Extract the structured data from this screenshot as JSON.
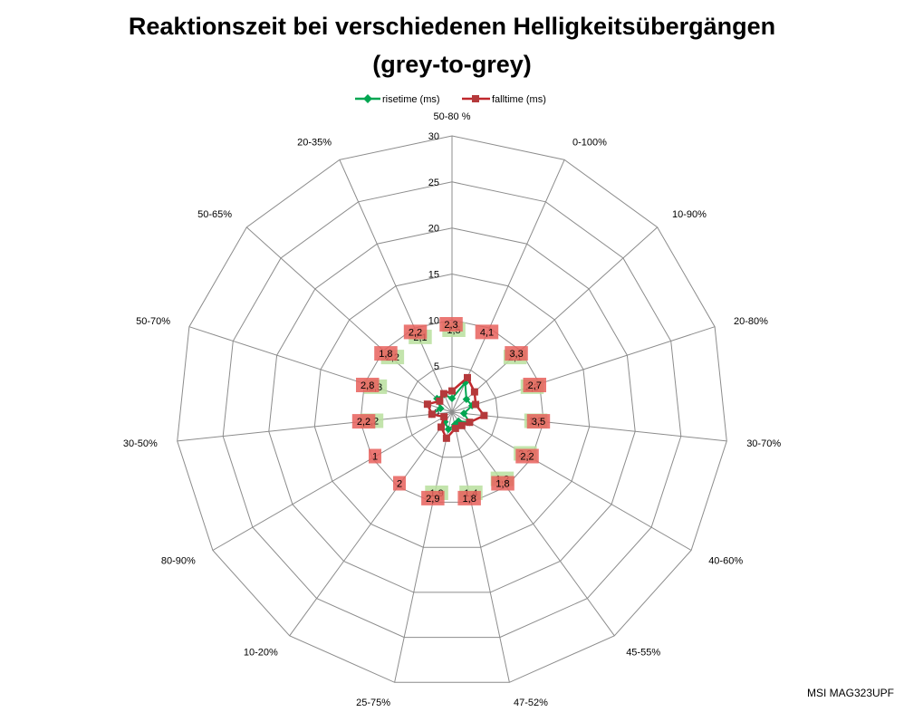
{
  "chart_data": {
    "type": "radar",
    "title_line1": "Reaktionszeit bei verschiedenen Helligkeitsübergängen",
    "title_line2": "(grey-to-grey)",
    "categories": [
      "50-80 %",
      "0-100%",
      "10-90%",
      "20-80%",
      "30-70%",
      "40-60%",
      "45-55%",
      "47-52%",
      "25-75%",
      "10-20%",
      "80-90%",
      "30-50%",
      "50-70%",
      "50-65%",
      "20-35%"
    ],
    "rmax": 30,
    "ticks": [
      0,
      5,
      10,
      15,
      20,
      25,
      30
    ],
    "series": [
      {
        "name": "risetime (ms)",
        "color": "#00a651",
        "values": [
          1.5,
          3.5,
          2.1,
          2.3,
          1.3,
          2.2,
          1.2,
          1.4,
          1.9,
          1.3,
          1.0,
          2.2,
          1.3,
          2.2,
          2.1
        ],
        "labels": [
          "1,5",
          "",
          "2,1",
          "2,3",
          "1,3",
          "2,2",
          "1,2",
          "1,4",
          "1,9",
          "",
          "",
          "2,2",
          "1,3",
          "2,2",
          "2,1"
        ]
      },
      {
        "name": "falltime (ms)",
        "color": "#c0282d",
        "values": [
          2.3,
          4.1,
          3.3,
          2.7,
          3.5,
          2.2,
          1.8,
          1.8,
          2.9,
          2.0,
          1.0,
          2.2,
          2.8,
          1.8,
          2.2
        ],
        "labels": [
          "2,3",
          "4,1",
          "3,3",
          "2,7",
          "3,5",
          "2,2",
          "1,8",
          "1,8",
          "2,9",
          "2",
          "1",
          "2,2",
          "2,8",
          "1,8",
          "2,2"
        ]
      }
    ],
    "legend_position": "top"
  },
  "watermark": "MSI MAG323UPF"
}
